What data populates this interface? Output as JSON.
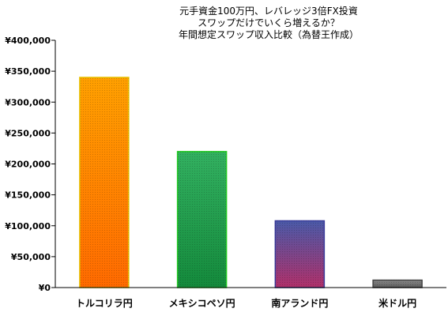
{
  "chart_data": {
    "type": "bar",
    "title_lines": [
      "元手資金100万円、レバレッジ3倍FX投資",
      "スワップだけでいくら増えるか？",
      "年間想定スワップ収入比較（為替王作成）"
    ],
    "xlabel": "",
    "ylabel": "",
    "categories": [
      "トルコリラ円",
      "メキシコペソ円",
      "南アランド円",
      "米ドル円"
    ],
    "values": [
      340000,
      220000,
      108000,
      12000
    ],
    "ylim": [
      0,
      400000
    ],
    "yticks": [
      0,
      50000,
      100000,
      150000,
      200000,
      250000,
      300000,
      350000,
      400000
    ],
    "ytick_labels": [
      "¥0",
      "¥50,000",
      "¥100,000",
      "¥150,000",
      "¥200,000",
      "¥250,000",
      "¥300,000",
      "¥350,000",
      "¥400,000"
    ],
    "grid": false,
    "legend": "none",
    "bar_colors": [
      {
        "top": "#ffa000",
        "bottom": "#ff6a00",
        "stroke": "#e6c000"
      },
      {
        "top": "#32b060",
        "bottom": "#148a3c",
        "stroke": "#22cc22"
      },
      {
        "top": "#4a5aa8",
        "bottom": "#b0306a",
        "stroke": "#3a3a9a"
      },
      {
        "top": "#8a8a8a",
        "bottom": "#5a5a5a",
        "stroke": "#444444"
      }
    ]
  }
}
